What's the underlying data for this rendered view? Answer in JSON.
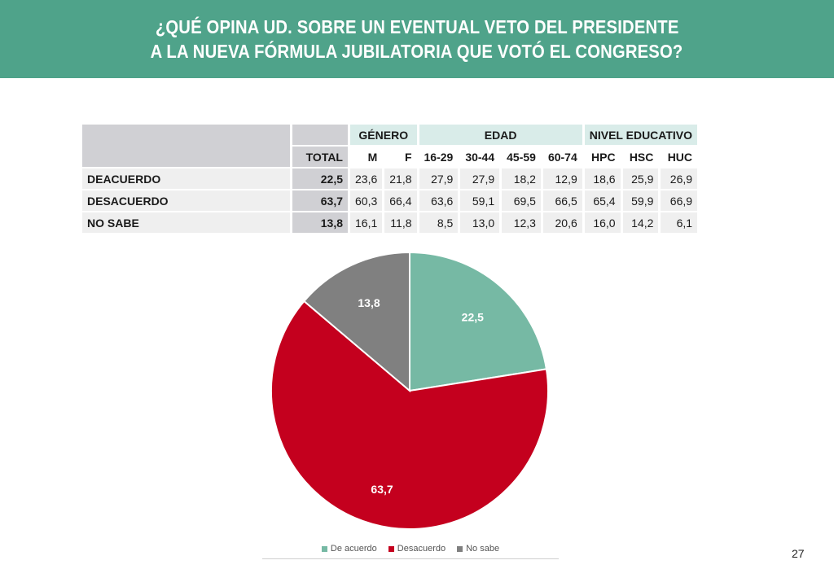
{
  "header": {
    "line1": "¿QUÉ OPINA UD. SOBRE UN EVENTUAL VETO DEL PRESIDENTE",
    "line2": "A LA NUEVA FÓRMULA JUBILATORIA QUE VOTÓ EL CONGRESO?"
  },
  "table": {
    "groups": {
      "genero": "GÉNERO",
      "edad": "EDAD",
      "nivel": "NIVEL EDUCATIVO"
    },
    "columns": [
      "TOTAL",
      "M",
      "F",
      "16-29",
      "30-44",
      "45-59",
      "60-74",
      "HPC",
      "HSC",
      "HUC"
    ],
    "rows": [
      {
        "label": "DEACUERDO",
        "total": "22,5",
        "values": [
          "23,6",
          "21,8",
          "27,9",
          "27,9",
          "18,2",
          "12,9",
          "18,6",
          "25,9",
          "26,9"
        ]
      },
      {
        "label": "DESACUERDO",
        "total": "63,7",
        "values": [
          "60,3",
          "66,4",
          "63,6",
          "59,1",
          "69,5",
          "66,5",
          "65,4",
          "59,9",
          "66,9"
        ]
      },
      {
        "label": "NO SABE",
        "total": "13,8",
        "values": [
          "16,1",
          "11,8",
          "8,5",
          "13,0",
          "12,3",
          "20,6",
          "16,0",
          "14,2",
          "6,1"
        ]
      }
    ]
  },
  "chart_data": {
    "type": "pie",
    "categories": [
      "De acuerdo",
      "Desacuerdo",
      "No sabe"
    ],
    "values": [
      22.5,
      63.7,
      13.8
    ],
    "labels": [
      "22,5",
      "63,7",
      "13,8"
    ],
    "colors": [
      "#76b9a4",
      "#c4001e",
      "#808080"
    ],
    "legend_position": "bottom",
    "start": "12 o'clock, clockwise"
  },
  "page_number": "27"
}
